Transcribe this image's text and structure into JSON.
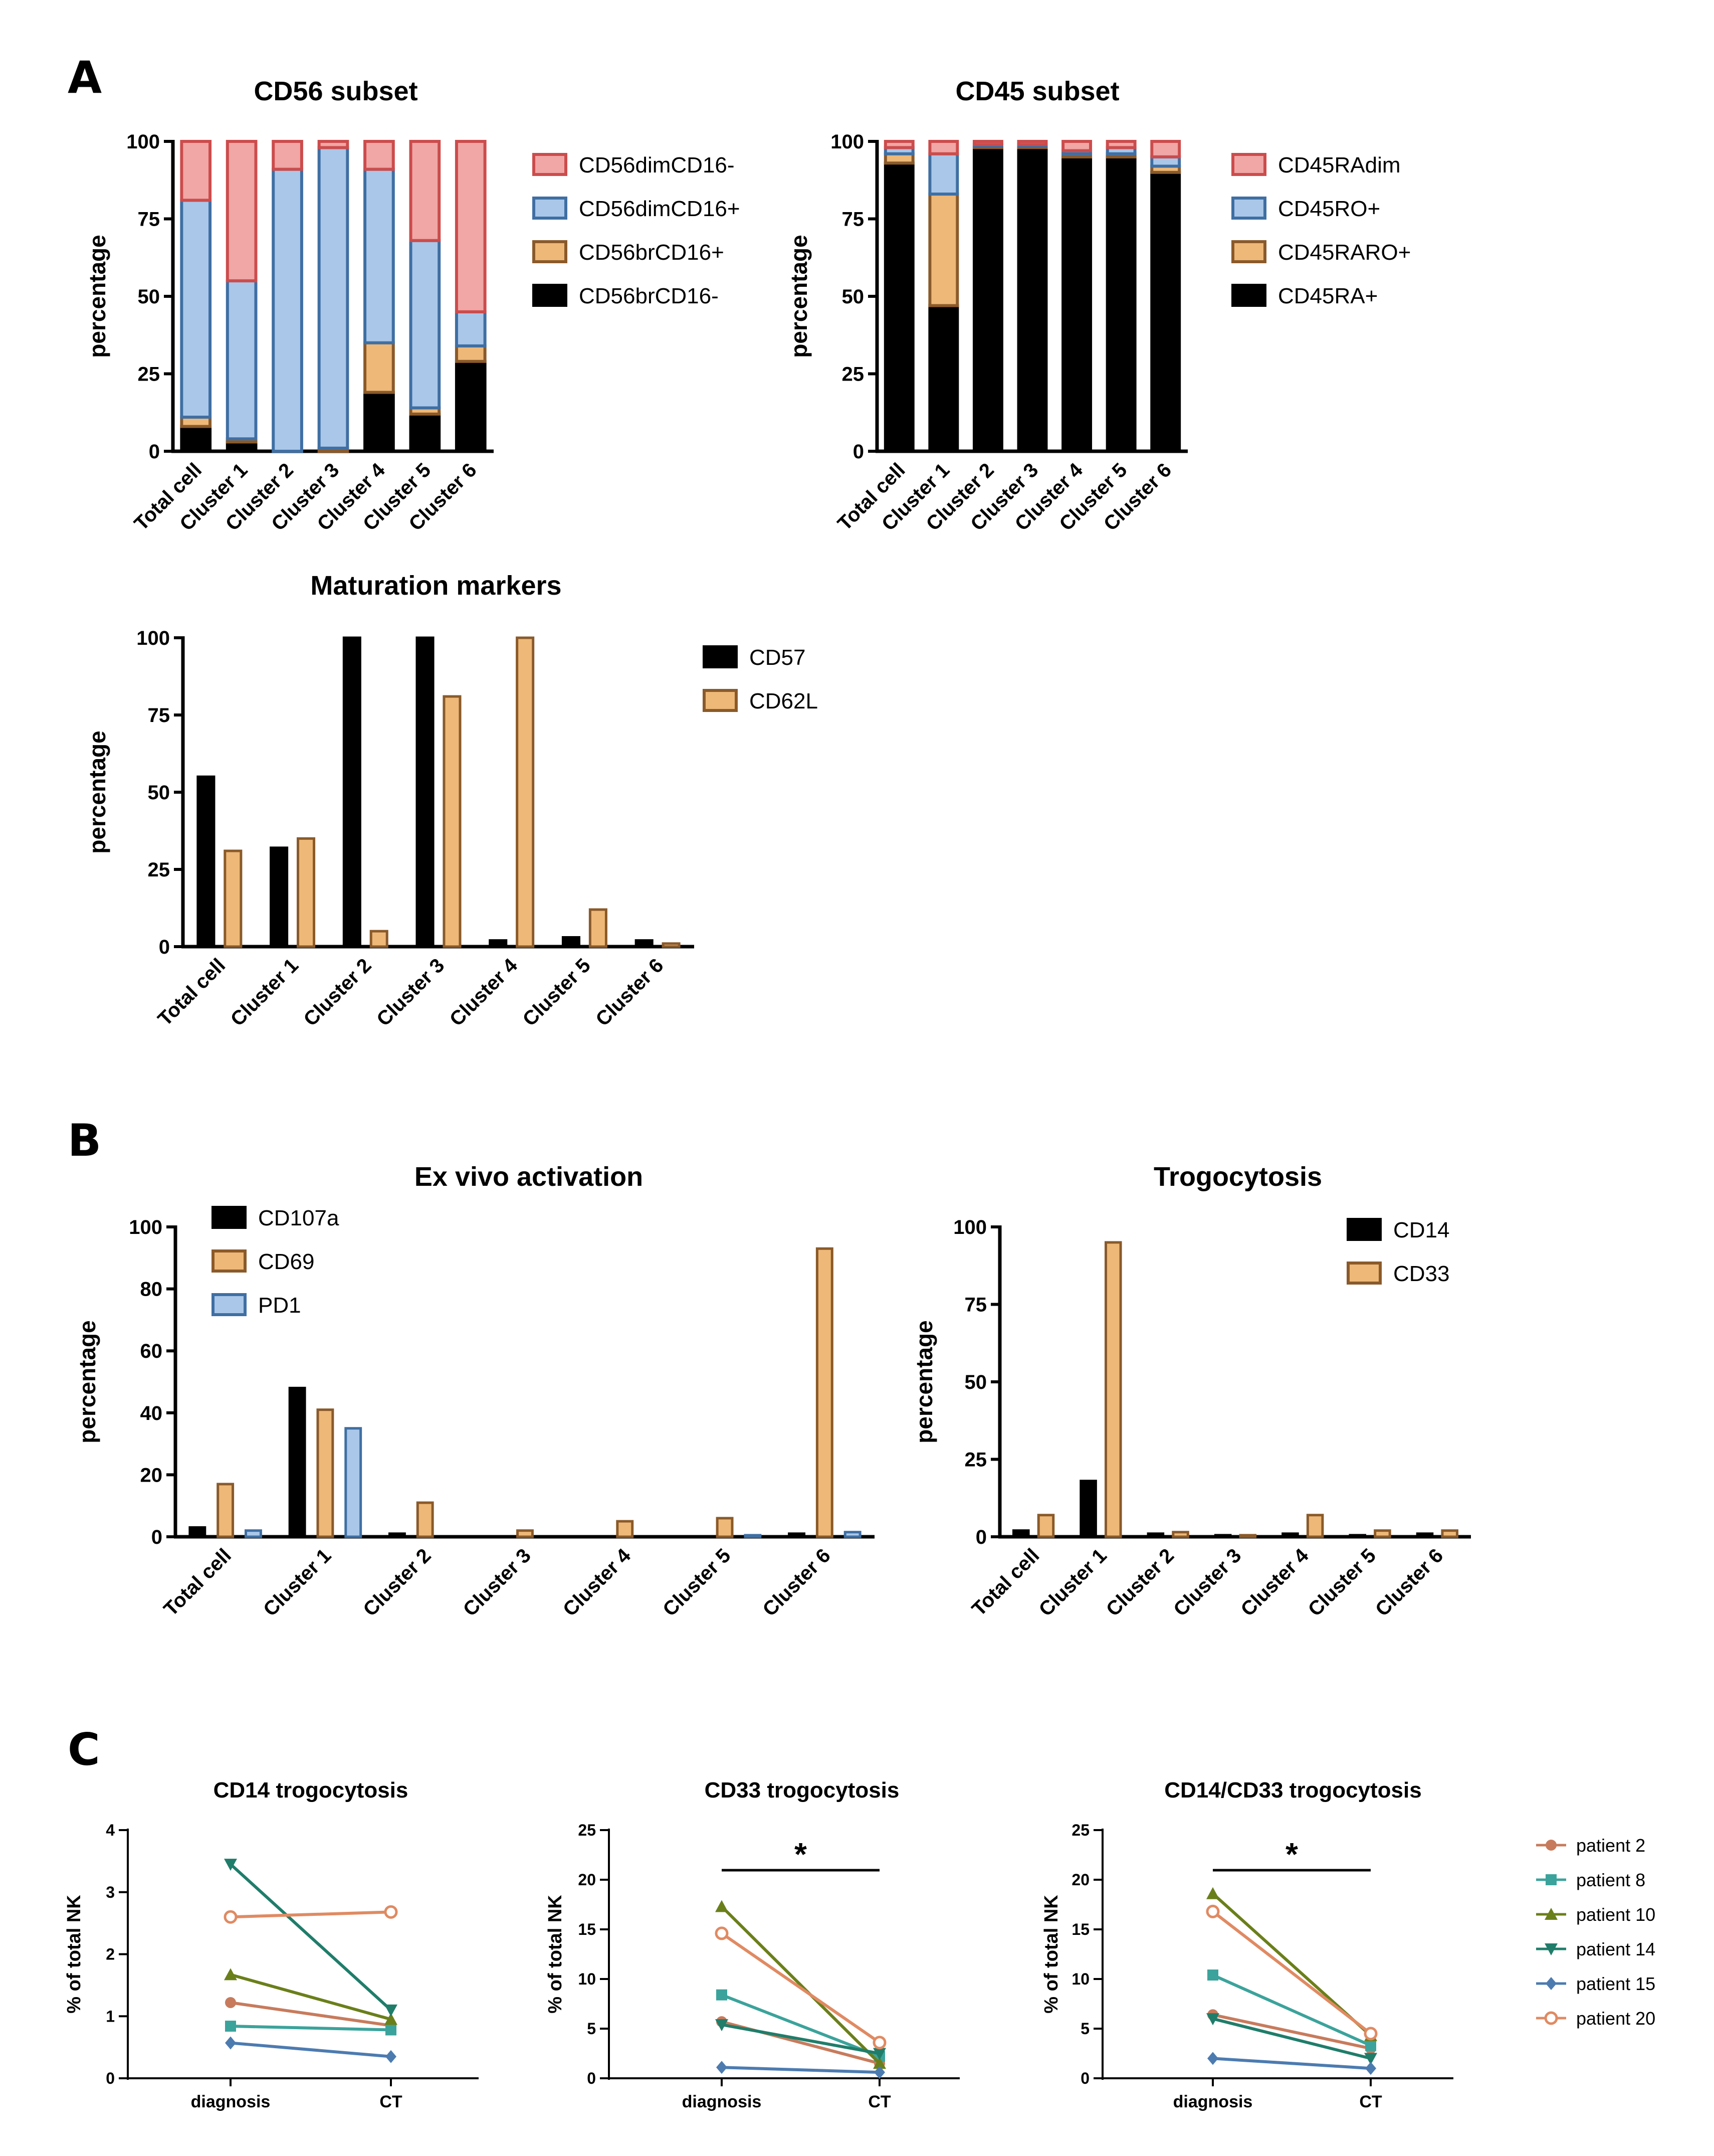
{
  "panel_labels": [
    "A",
    "B",
    "C"
  ],
  "colors": {
    "pink_fill": "#f0a7a6",
    "pink_edge": "#cc4c4c",
    "blue_fill": "#aac7e9",
    "blue_edge": "#3f6fa3",
    "tan_fill": "#eeb878",
    "tan_edge": "#8a5a2a",
    "black": "#000000",
    "patient_2": "#c77b5c",
    "patient_8": "#3ba39b",
    "patient_10": "#6a7f1a",
    "patient_14": "#1f7d6a",
    "patient_15": "#4c7bb0",
    "patient_20": "#e08a62"
  },
  "chart_data": [
    {
      "id": "cd56",
      "type": "bar",
      "stacked": true,
      "title": "CD56 subset",
      "ylabel": "percentage",
      "ylim": [
        0,
        100
      ],
      "yticks": [
        "0",
        "25",
        "50",
        "75",
        "100"
      ],
      "categories": [
        "Total cell",
        "Cluster 1",
        "Cluster 2",
        "Cluster 3",
        "Cluster 4",
        "Cluster 5",
        "Cluster 6"
      ],
      "legend_position": "right",
      "series": [
        {
          "name": "CD56brCD16-",
          "values": [
            8,
            3,
            0,
            0,
            19,
            12,
            29
          ],
          "color": "black"
        },
        {
          "name": "CD56brCD16+",
          "values": [
            3,
            1,
            0,
            1,
            16,
            2,
            5
          ],
          "color": "tan"
        },
        {
          "name": "CD56dimCD16+",
          "values": [
            70,
            51,
            91,
            97,
            56,
            54,
            11
          ],
          "color": "blue"
        },
        {
          "name": "CD56dimCD16-",
          "values": [
            19,
            45,
            9,
            2,
            9,
            32,
            55
          ],
          "color": "pink"
        }
      ]
    },
    {
      "id": "cd45",
      "type": "bar",
      "stacked": true,
      "title": "CD45 subset",
      "ylabel": "percentage",
      "ylim": [
        0,
        100
      ],
      "yticks": [
        "0",
        "25",
        "50",
        "75",
        "100"
      ],
      "categories": [
        "Total cell",
        "Cluster 1",
        "Cluster 2",
        "Cluster 3",
        "Cluster 4",
        "Cluster 5",
        "Cluster 6"
      ],
      "legend_position": "right",
      "series": [
        {
          "name": "CD45RA+",
          "values": [
            93,
            47,
            98,
            98,
            95,
            95,
            90
          ],
          "color": "black"
        },
        {
          "name": "CD45RARO+",
          "values": [
            3,
            36,
            0.5,
            0.5,
            1,
            1,
            2
          ],
          "color": "tan"
        },
        {
          "name": "CD45RO+",
          "values": [
            2,
            13,
            0.5,
            0.5,
            1,
            2,
            3
          ],
          "color": "blue"
        },
        {
          "name": "CD45RAdim",
          "values": [
            2,
            4,
            1,
            1,
            3,
            2,
            5
          ],
          "color": "pink"
        }
      ]
    },
    {
      "id": "maturation",
      "type": "bar",
      "stacked": false,
      "title": "Maturation markers",
      "ylabel": "percentage",
      "ylim": [
        0,
        100
      ],
      "yticks": [
        "0",
        "25",
        "50",
        "75",
        "100"
      ],
      "categories": [
        "Total cell",
        "Cluster 1",
        "Cluster 2",
        "Cluster 3",
        "Cluster 4",
        "Cluster 5",
        "Cluster 6"
      ],
      "legend_position": "right",
      "series": [
        {
          "name": "CD57",
          "values": [
            55,
            32,
            100,
            100,
            2,
            3,
            2
          ],
          "color": "black"
        },
        {
          "name": "CD62L",
          "values": [
            31,
            35,
            5,
            81,
            100,
            12,
            1
          ],
          "color": "tan"
        }
      ]
    },
    {
      "id": "exvivo",
      "type": "bar",
      "stacked": false,
      "title": "Ex vivo activation",
      "ylabel": "percentage",
      "ylim": [
        0,
        100
      ],
      "yticks": [
        "0",
        "20",
        "40",
        "60",
        "80",
        "100"
      ],
      "categories": [
        "Total cell",
        "Cluster 1",
        "Cluster 2",
        "Cluster 3",
        "Cluster 4",
        "Cluster 5",
        "Cluster 6"
      ],
      "legend_position": "top-left",
      "series": [
        {
          "name": "CD107a",
          "values": [
            3,
            48,
            1,
            0,
            0,
            0,
            1
          ],
          "color": "black"
        },
        {
          "name": "CD69",
          "values": [
            17,
            41,
            11,
            2,
            5,
            6,
            93
          ],
          "color": "tan"
        },
        {
          "name": "PD1",
          "values": [
            2,
            35,
            0,
            0,
            0,
            0.5,
            1.5
          ],
          "color": "blue"
        }
      ]
    },
    {
      "id": "trogo",
      "type": "bar",
      "stacked": false,
      "title": "Trogocytosis",
      "ylabel": "percentage",
      "ylim": [
        0,
        100
      ],
      "yticks": [
        "0",
        "25",
        "50",
        "75",
        "100"
      ],
      "categories": [
        "Total cell",
        "Cluster 1",
        "Cluster 2",
        "Cluster 3",
        "Cluster 4",
        "Cluster 5",
        "Cluster 6"
      ],
      "legend_position": "top-right",
      "series": [
        {
          "name": "CD14",
          "values": [
            2,
            18,
            1,
            0.5,
            1,
            0.5,
            1
          ],
          "color": "black"
        },
        {
          "name": "CD33",
          "values": [
            7,
            95,
            1.5,
            0.5,
            7,
            2,
            2
          ],
          "color": "tan"
        }
      ]
    },
    {
      "id": "c1",
      "type": "line",
      "title": "CD14 trogocytosis",
      "ylabel": "% of total NK",
      "ylim": [
        0,
        4
      ],
      "yticks": [
        "0",
        "1",
        "2",
        "3",
        "4"
      ],
      "categories": [
        "diagnosis",
        "CT"
      ],
      "significance": "",
      "series": [
        {
          "name": "patient 2",
          "values": [
            1.22,
            0.85
          ],
          "marker": "circle-filled",
          "color": "patient_2"
        },
        {
          "name": "patient 8",
          "values": [
            0.84,
            0.78
          ],
          "marker": "square",
          "color": "patient_8"
        },
        {
          "name": "patient 10",
          "values": [
            1.67,
            0.95
          ],
          "marker": "triangle-up",
          "color": "patient_10"
        },
        {
          "name": "patient 14",
          "values": [
            3.45,
            1.1
          ],
          "marker": "triangle-down",
          "color": "patient_14"
        },
        {
          "name": "patient 15",
          "values": [
            0.57,
            0.35
          ],
          "marker": "diamond",
          "color": "patient_15"
        },
        {
          "name": "patient 20",
          "values": [
            2.6,
            2.68
          ],
          "marker": "circle-open",
          "color": "patient_20"
        }
      ]
    },
    {
      "id": "c2",
      "type": "line",
      "title": "CD33 trogocytosis",
      "ylabel": "% of total NK",
      "ylim": [
        0,
        25
      ],
      "yticks": [
        "0",
        "5",
        "10",
        "15",
        "20",
        "25"
      ],
      "categories": [
        "diagnosis",
        "CT"
      ],
      "significance": "*",
      "series": [
        {
          "name": "patient 2",
          "values": [
            5.7,
            1.5
          ],
          "marker": "circle-filled",
          "color": "patient_2"
        },
        {
          "name": "patient 8",
          "values": [
            8.4,
            2.2
          ],
          "marker": "square",
          "color": "patient_8"
        },
        {
          "name": "patient 10",
          "values": [
            17.3,
            1.5
          ],
          "marker": "triangle-up",
          "color": "patient_10"
        },
        {
          "name": "patient 14",
          "values": [
            5.4,
            2.5
          ],
          "marker": "triangle-down",
          "color": "patient_14"
        },
        {
          "name": "patient 15",
          "values": [
            1.1,
            0.6
          ],
          "marker": "diamond",
          "color": "patient_15"
        },
        {
          "name": "patient 20",
          "values": [
            14.6,
            3.6
          ],
          "marker": "circle-open",
          "color": "patient_20"
        }
      ]
    },
    {
      "id": "c3",
      "type": "line",
      "title": "CD14/CD33 trogocytosis",
      "ylabel": "% of total NK",
      "ylim": [
        0,
        25
      ],
      "yticks": [
        "0",
        "5",
        "10",
        "15",
        "20",
        "25"
      ],
      "categories": [
        "diagnosis",
        "CT"
      ],
      "significance": "*",
      "series": [
        {
          "name": "patient 2",
          "values": [
            6.4,
            3.0
          ],
          "marker": "circle-filled",
          "color": "patient_2"
        },
        {
          "name": "patient 8",
          "values": [
            10.4,
            3.3
          ],
          "marker": "square",
          "color": "patient_8"
        },
        {
          "name": "patient 10",
          "values": [
            18.6,
            4.3
          ],
          "marker": "triangle-up",
          "color": "patient_10"
        },
        {
          "name": "patient 14",
          "values": [
            6.0,
            2.0
          ],
          "marker": "triangle-down",
          "color": "patient_14"
        },
        {
          "name": "patient 15",
          "values": [
            2.0,
            1.0
          ],
          "marker": "diamond",
          "color": "patient_15"
        },
        {
          "name": "patient 20",
          "values": [
            16.8,
            4.5
          ],
          "marker": "circle-open",
          "color": "patient_20"
        }
      ]
    }
  ],
  "patient_legend": [
    "patient 2",
    "patient 8",
    "patient 10",
    "patient 14",
    "patient 15",
    "patient 20"
  ]
}
